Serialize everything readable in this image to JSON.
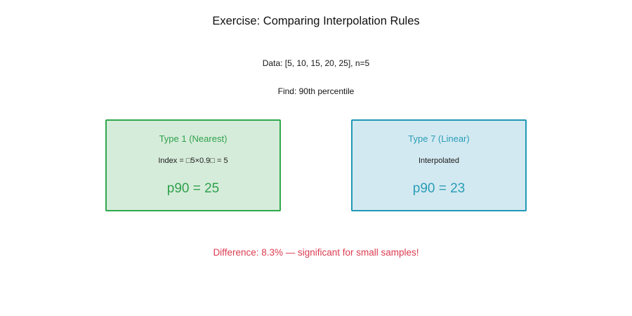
{
  "figure": {
    "title": "Exercise: Comparing Interpolation Rules",
    "background_color": "#ffffff"
  },
  "problem": {
    "data_line": "Data: [5, 10, 15, 20, 25], n=5",
    "find_line": "Find: 90th percentile"
  },
  "cards": [
    {
      "title": "Type 1 (Nearest)",
      "detail": "Index = □5×0.9□ = 5",
      "result": "p90 = 25",
      "border_color": "#2fa84d",
      "fill_color": "#d6ecda",
      "accent_color": "#2fa14d"
    },
    {
      "title": "Type 7 (Linear)",
      "detail": "Interpolated",
      "result": "p90 = 23",
      "border_color": "#2099b5",
      "fill_color": "#d3e9f1",
      "accent_color": "#2a9db6"
    }
  ],
  "note": {
    "text": "Difference: 8.3% — significant for small samples!",
    "color": "#dc3c50"
  }
}
